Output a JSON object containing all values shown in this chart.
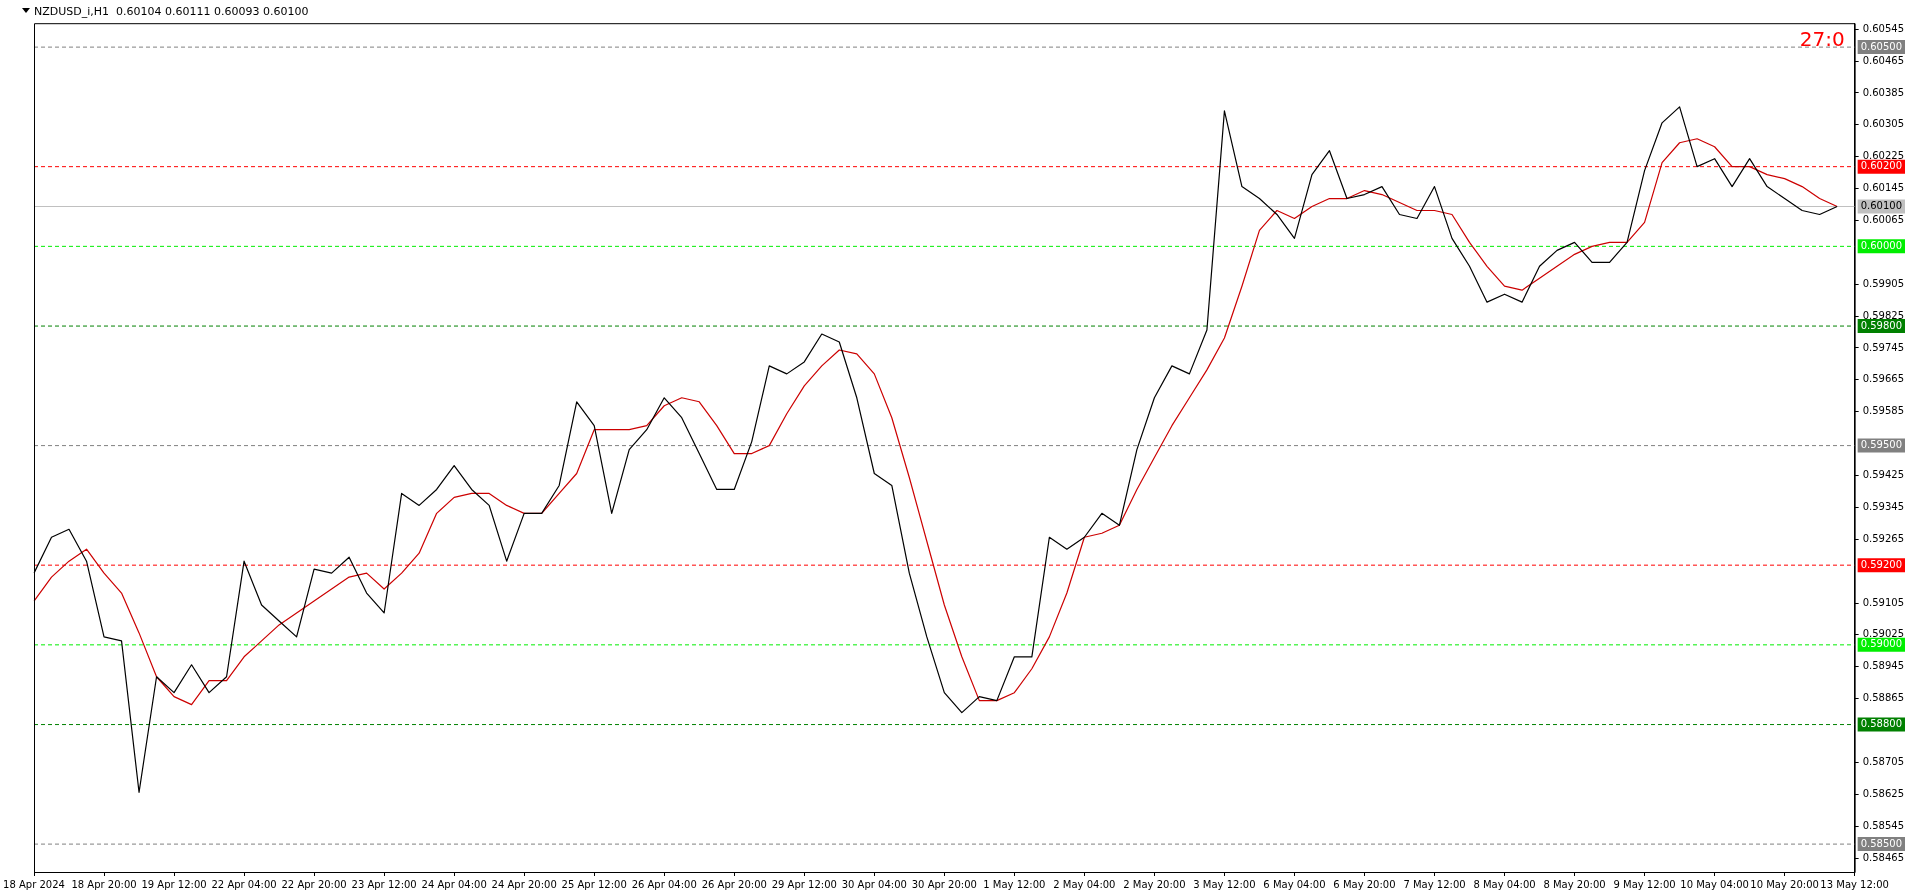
{
  "chart_data": {
    "type": "line",
    "title": "NZDUSD_i,H1  0.60104 0.60111 0.60093 0.60100",
    "categories": [
      "18 Apr 2024",
      null,
      null,
      null,
      "18 Apr 20:00",
      null,
      null,
      null,
      "19 Apr 12:00",
      null,
      null,
      null,
      "22 Apr 04:00",
      null,
      null,
      null,
      "22 Apr 20:00",
      null,
      null,
      null,
      "23 Apr 12:00",
      null,
      null,
      null,
      "24 Apr 04:00",
      null,
      null,
      null,
      "24 Apr 20:00",
      null,
      null,
      null,
      "25 Apr 12:00",
      null,
      null,
      null,
      "26 Apr 04:00",
      null,
      null,
      null,
      "26 Apr 20:00",
      null,
      null,
      null,
      "29 Apr 12:00",
      null,
      null,
      null,
      "30 Apr 04:00",
      null,
      null,
      null,
      "30 Apr 20:00",
      null,
      null,
      null,
      "1 May 12:00",
      null,
      null,
      null,
      "2 May 04:00",
      null,
      null,
      null,
      "2 May 20:00",
      null,
      null,
      null,
      "3 May 12:00",
      null,
      null,
      null,
      "6 May 04:00",
      null,
      null,
      null,
      "6 May 20:00",
      null,
      null,
      null,
      "7 May 12:00",
      null,
      null,
      null,
      "8 May 04:00",
      null,
      null,
      null,
      "8 May 20:00",
      null,
      null,
      null,
      "9 May 12:00",
      null,
      null,
      null,
      "10 May 04:00",
      null,
      null,
      null,
      "10 May 20:00",
      null,
      null,
      null,
      "13 May 12:00"
    ],
    "series": [
      {
        "color": "#000000",
        "values": [
          0.5918,
          0.5927,
          0.5929,
          0.5921,
          0.5902,
          0.5901,
          0.5863,
          0.5892,
          0.5888,
          0.5895,
          0.5888,
          0.5892,
          0.5921,
          0.591,
          0.5906,
          0.5902,
          0.5919,
          0.5918,
          0.5922,
          0.5913,
          0.5908,
          0.5938,
          0.5935,
          0.5939,
          0.5945,
          0.5939,
          0.5935,
          0.5921,
          0.5933,
          0.5933,
          0.594,
          0.5961,
          0.5955,
          0.5933,
          0.5949,
          0.5954,
          0.5962,
          0.5957,
          0.5948,
          0.5939,
          0.5939,
          0.5951,
          0.597,
          0.5968,
          0.5971,
          0.5978,
          0.5976,
          0.5962,
          0.5943,
          0.594,
          0.5918,
          0.5902,
          0.5888,
          0.5883,
          0.5887,
          0.5886,
          0.5897,
          0.5897,
          0.5927,
          0.5924,
          0.5927,
          0.5933,
          0.593,
          0.5949,
          0.5962,
          0.597,
          0.5968,
          0.5979,
          0.6034,
          0.6015,
          0.6012,
          0.6008,
          0.6002,
          0.6018,
          0.6024,
          0.6012,
          0.6013,
          0.6015,
          0.6008,
          0.6007,
          0.6015,
          0.6002,
          0.5995,
          0.5986,
          0.5988,
          0.5986,
          0.5995,
          0.5999,
          0.6001,
          0.5996,
          0.5996,
          0.6001,
          0.6019,
          0.6031,
          0.6035,
          0.602,
          0.6022,
          0.6015,
          0.6022,
          0.6015,
          0.6012,
          0.6009,
          0.6008,
          0.601,
          null
        ]
      },
      {
        "color": "#cc0000",
        "values": [
          0.5911,
          0.5917,
          0.5921,
          0.5924,
          0.5918,
          0.5913,
          0.5903,
          0.5892,
          0.5887,
          0.5885,
          0.5891,
          0.5891,
          0.5897,
          0.5901,
          0.5905,
          0.5908,
          0.5911,
          0.5914,
          0.5917,
          0.5918,
          0.5914,
          0.5918,
          0.5923,
          0.5933,
          0.5937,
          0.5938,
          0.5938,
          0.5935,
          0.5933,
          0.5933,
          0.5938,
          0.5943,
          0.5954,
          0.5954,
          0.5954,
          0.5955,
          0.596,
          0.5962,
          0.5961,
          0.5955,
          0.5948,
          0.5948,
          0.595,
          0.5958,
          0.5965,
          0.597,
          0.5974,
          0.5973,
          0.5968,
          0.5957,
          0.5942,
          0.5926,
          0.591,
          0.5897,
          0.5886,
          0.5886,
          0.5888,
          0.5894,
          0.5902,
          0.5913,
          0.5927,
          0.5928,
          0.593,
          0.5939,
          0.5947,
          0.5955,
          0.5962,
          0.5969,
          0.5977,
          0.599,
          0.6004,
          0.6009,
          0.6007,
          0.601,
          0.6012,
          0.6012,
          0.6014,
          0.6013,
          0.6011,
          0.6009,
          0.6009,
          0.6008,
          0.6001,
          0.5995,
          0.599,
          0.5989,
          0.5992,
          0.5995,
          0.5998,
          0.6,
          0.6001,
          0.6001,
          0.6006,
          0.6021,
          0.6026,
          0.6027,
          0.6025,
          0.602,
          0.602,
          0.6018,
          0.6017,
          0.6015,
          0.6012,
          0.601,
          null
        ]
      }
    ],
    "ylim": [
      0.5843,
      0.6056
    ],
    "yticks": [
      0.58465,
      0.58545,
      0.58625,
      0.58705,
      0.58865,
      0.58945,
      0.59025,
      0.59105,
      0.59265,
      0.59345,
      0.59425,
      0.59585,
      0.59665,
      0.59745,
      0.59825,
      0.59905,
      0.60065,
      0.60145,
      0.60225,
      0.60305,
      0.60385,
      0.60465,
      0.60545
    ],
    "ref_lines": [
      {
        "axis": "y",
        "value": 0.605,
        "label": "0.60500",
        "color": "#808080",
        "line_style": "dashed"
      },
      {
        "axis": "y",
        "value": 0.602,
        "label": "0.60200",
        "color": "#ff0000",
        "line_style": "dashed"
      },
      {
        "axis": "y",
        "value": 0.601,
        "label": "0.60100",
        "color": "#c0c0c0",
        "line_style": "solid"
      },
      {
        "axis": "y",
        "value": 0.6,
        "label": "0.60000",
        "color": "#00ee00",
        "line_style": "dashed"
      },
      {
        "axis": "y",
        "value": 0.598,
        "label": "0.59800",
        "color": "#008000",
        "line_style": "dashed"
      },
      {
        "axis": "y",
        "value": 0.595,
        "label": "0.59500",
        "color": "#808080",
        "line_style": "dashed"
      },
      {
        "axis": "y",
        "value": 0.592,
        "label": "0.59200",
        "color": "#ff0000",
        "line_style": "dashed"
      },
      {
        "axis": "y",
        "value": 0.59,
        "label": "0.59000",
        "color": "#00ee00",
        "line_style": "dashed"
      },
      {
        "axis": "y",
        "value": 0.588,
        "label": "0.58800",
        "color": "#008000",
        "line_style": "dashed"
      },
      {
        "axis": "y",
        "value": 0.585,
        "label": "0.58500",
        "color": "#808080",
        "line_style": "dashed"
      }
    ],
    "annotations": [
      "27:0"
    ],
    "legend": false
  }
}
